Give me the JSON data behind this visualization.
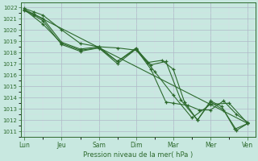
{
  "xlabel": "Pression niveau de la mer( hPa )",
  "ylim": [
    1011,
    1022
  ],
  "yticks": [
    1011,
    1012,
    1013,
    1014,
    1015,
    1016,
    1017,
    1018,
    1019,
    1020,
    1021,
    1022
  ],
  "xtick_labels": [
    "Lun",
    "Jeu",
    "Sam",
    "Dim",
    "Mar",
    "Mer",
    "Ven"
  ],
  "xtick_pos": [
    0,
    1,
    2,
    3,
    4,
    5,
    6
  ],
  "bg_color": "#c8e8e0",
  "line_color": "#2d6a2d",
  "grid_color_major": "#b0b8c8",
  "grid_color_minor": "#d8dce8",
  "lines": [
    {
      "x": [
        0,
        0.25,
        0.5,
        1.0,
        1.5,
        2.0,
        2.5,
        3.0,
        3.3,
        3.7,
        4.0,
        4.3,
        4.65,
        5.0,
        5.3,
        5.65,
        6.0
      ],
      "y": [
        1021.9,
        1021.6,
        1021.3,
        1020.0,
        1018.8,
        1018.5,
        1018.4,
        1018.2,
        1017.1,
        1017.3,
        1016.5,
        1013.6,
        1012.0,
        1013.7,
        1013.2,
        1011.2,
        1011.7
      ]
    },
    {
      "x": [
        0,
        0.25,
        0.5,
        1.0,
        1.5,
        2.0,
        2.5,
        3.0,
        3.4,
        3.8,
        4.0,
        4.4,
        4.7,
        5.0,
        5.35,
        5.7,
        6.0
      ],
      "y": [
        1021.8,
        1021.4,
        1021.0,
        1018.9,
        1018.3,
        1018.5,
        1017.2,
        1018.3,
        1016.5,
        1013.6,
        1013.5,
        1013.3,
        1012.9,
        1012.9,
        1013.7,
        1012.5,
        1011.8
      ]
    },
    {
      "x": [
        0,
        0.25,
        0.5,
        1.0,
        1.5,
        2.0,
        2.5,
        3.0,
        3.4,
        3.8,
        4.2,
        4.65,
        5.0,
        5.35,
        5.7,
        6.0
      ],
      "y": [
        1021.7,
        1021.3,
        1020.8,
        1018.7,
        1018.1,
        1018.4,
        1017.0,
        1018.3,
        1016.9,
        1017.2,
        1013.8,
        1012.0,
        1013.6,
        1012.9,
        1011.1,
        1011.7
      ]
    },
    {
      "x": [
        0,
        0.5,
        1.0,
        1.5,
        2.0,
        2.5,
        3.0,
        3.5,
        4.0,
        4.5,
        5.0,
        5.5,
        6.0
      ],
      "y": [
        1021.8,
        1020.5,
        1018.8,
        1018.2,
        1018.4,
        1017.2,
        1018.4,
        1016.3,
        1014.2,
        1012.2,
        1013.4,
        1013.5,
        1011.7
      ]
    }
  ],
  "trend_x": [
    0,
    6
  ],
  "trend_y": [
    1021.8,
    1011.7
  ]
}
